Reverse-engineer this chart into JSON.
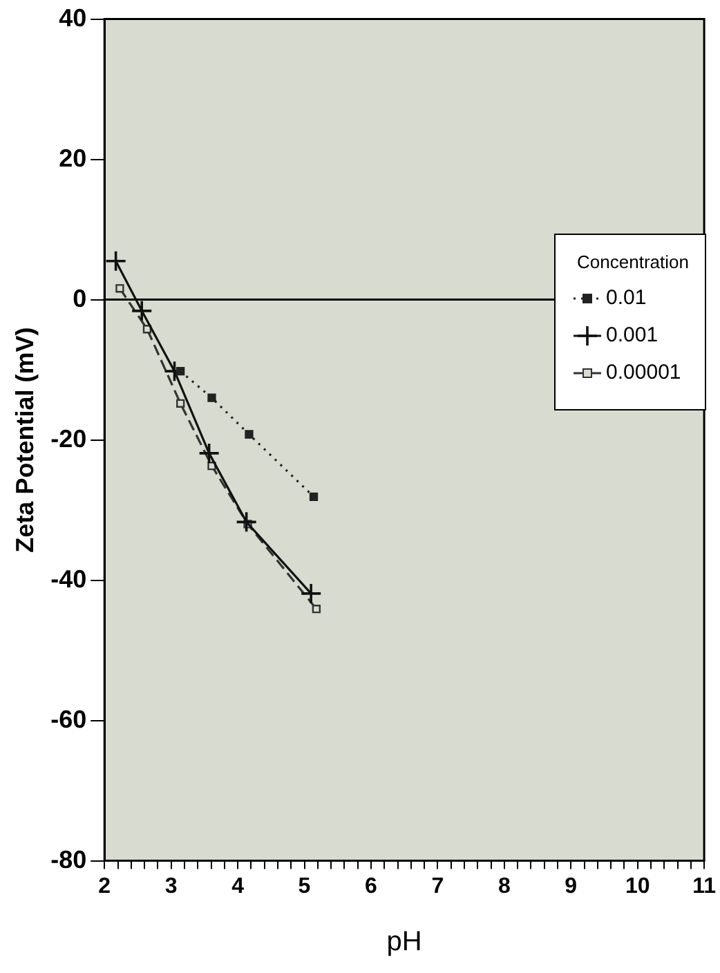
{
  "chart_data": {
    "type": "line",
    "xlabel": "pH",
    "ylabel": "Zeta Potential (mV)",
    "legend_title": "Concentration",
    "legend": "right",
    "grid": false,
    "xlim": [
      2,
      11
    ],
    "ylim": [
      -80,
      40
    ],
    "xticks": [
      2,
      {
        "value": 2.2,
        "label": null
      },
      {
        "value": 2.4,
        "label": null
      },
      {
        "value": 2.6,
        "label": null
      },
      {
        "value": 2.8,
        "label": null
      },
      3,
      {
        "value": 3.2,
        "label": null
      },
      {
        "value": 3.4,
        "label": null
      },
      {
        "value": 3.6,
        "label": null
      },
      {
        "value": 3.8,
        "label": null
      },
      4,
      {
        "value": 4.2,
        "label": null
      },
      {
        "value": 4.4,
        "label": null
      },
      {
        "value": 4.6,
        "label": null
      },
      {
        "value": 4.8,
        "label": null
      },
      5,
      {
        "value": 5.2,
        "label": null
      },
      {
        "value": 5.4,
        "label": null
      },
      {
        "value": 5.6,
        "label": null
      },
      {
        "value": 5.8,
        "label": null
      },
      6,
      {
        "value": 6.2,
        "label": null
      },
      {
        "value": 6.4,
        "label": null
      },
      {
        "value": 6.6,
        "label": null
      },
      {
        "value": 6.8,
        "label": null
      },
      7,
      {
        "value": 7.2,
        "label": null
      },
      {
        "value": 7.4,
        "label": null
      },
      {
        "value": 7.6,
        "label": null
      },
      {
        "value": 7.8,
        "label": null
      },
      8,
      {
        "value": 8.2,
        "label": null
      },
      {
        "value": 8.4,
        "label": null
      },
      {
        "value": 8.6,
        "label": null
      },
      {
        "value": 8.8,
        "label": null
      },
      9,
      {
        "value": 9.2,
        "label": null
      },
      {
        "value": 9.4,
        "label": null
      },
      {
        "value": 9.6,
        "label": null
      },
      {
        "value": 9.8,
        "label": null
      },
      10,
      {
        "value": 10.2,
        "label": null
      },
      {
        "value": 10.4,
        "label": null
      },
      {
        "value": 10.6,
        "label": null
      },
      {
        "value": 10.8,
        "label": null
      },
      11
    ],
    "yticks": [
      -80,
      -60,
      -40,
      -20,
      0,
      20,
      40
    ],
    "ref_lines": [
      {
        "axis": "y",
        "value": 0,
        "color": "#000000"
      }
    ],
    "series": [
      {
        "name": "0.01",
        "color": "#222222",
        "marker": "square",
        "line_style": "dotted",
        "x": [
          3.14,
          3.61,
          4.17,
          5.14
        ],
        "values": [
          -10.2,
          -14,
          -19.2,
          -28.1
        ]
      },
      {
        "name": "0.001",
        "color": "#111111",
        "marker": "cross",
        "line_style": "solid",
        "x": [
          2.17,
          2.56,
          3.05,
          3.57,
          4.13,
          5.1
        ],
        "values": [
          5.5,
          -1.6,
          -10.2,
          -21.9,
          -31.7,
          -41.9
        ]
      },
      {
        "name": "0.00001",
        "color": "#333333",
        "marker": "square",
        "line_style": "dashed",
        "x": [
          2.23,
          2.64,
          3.14,
          3.61,
          4.15,
          5.18
        ],
        "values": [
          1.6,
          -4.2,
          -14.8,
          -23.7,
          -32,
          -44.1
        ]
      }
    ]
  }
}
